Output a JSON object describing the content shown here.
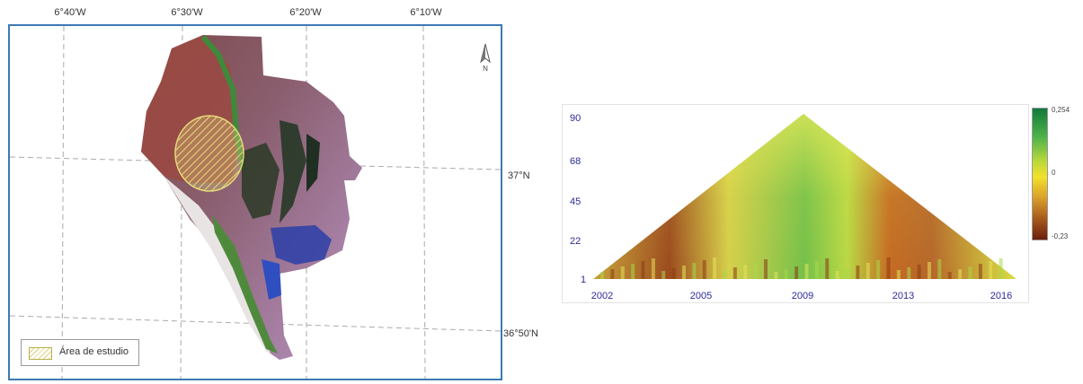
{
  "map": {
    "lon_labels": [
      "6°40'W",
      "6°30'W",
      "6°20'W",
      "6°10'W"
    ],
    "lat_labels": [
      "37°N",
      "36°50'N"
    ],
    "north_label": "N",
    "legend_label": "Área de estudio"
  },
  "chart_data": {
    "type": "heatmap",
    "title": "",
    "xlabel": "",
    "ylabel": "",
    "x_ticks": [
      "2002",
      "2005",
      "2009",
      "2013",
      "2016"
    ],
    "y_ticks": [
      "90",
      "68",
      "45",
      "22",
      "1"
    ],
    "ylim": [
      1,
      90
    ],
    "colorbar": {
      "max_label": "0,254",
      "mid_label": "0",
      "min_label": "-0,23",
      "colors": [
        "#0f7a3a",
        "#b7d83a",
        "#f2e12a",
        "#a85a1a",
        "#6a1f0e"
      ]
    }
  }
}
